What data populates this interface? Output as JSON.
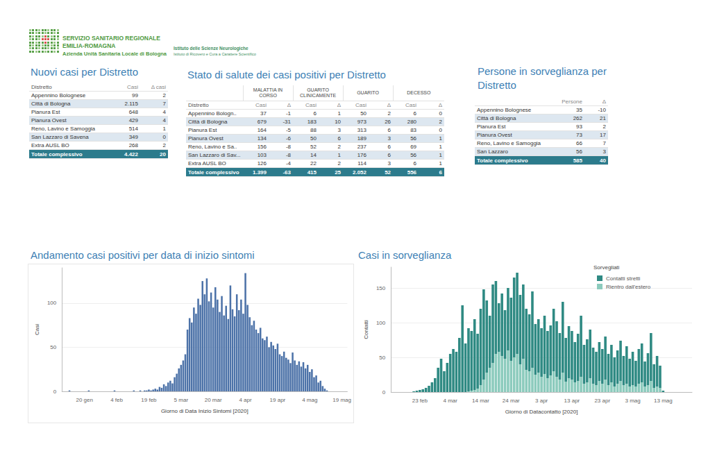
{
  "header": {
    "organization": [
      "SERVIZIO SANITARIO REGIONALE",
      "EMILIA-ROMAGNA",
      "Azienda Unità Sanitaria Locale di Bologna"
    ],
    "institute": [
      "Istituto delle Scienze Neurologiche",
      "Istituto di Ricovero e Cura a Carattere Scientifico"
    ]
  },
  "tables": [
    {
      "title": "Nuovi casi per Distretto",
      "columns": [
        "Distretto",
        "Casi",
        "Δ casi"
      ],
      "rows": [
        [
          "Appennino Bolognese",
          "99",
          "2"
        ],
        [
          "Città di Bologna",
          "2.115",
          "7"
        ],
        [
          "Pianura Est",
          "648",
          "4"
        ],
        [
          "Pianura Ovest",
          "429",
          "4"
        ],
        [
          "Reno, Lavino e Samoggia",
          "514",
          "1"
        ],
        [
          "San Lazzaro di Savena",
          "349",
          "0"
        ],
        [
          "Extra AUSL BO",
          "268",
          "2"
        ]
      ],
      "total": [
        "Totale complessivo",
        "4.422",
        "20"
      ]
    },
    {
      "title": "Stato di salute dei casi positivi per Distretto",
      "groups": [
        "MALATTIA IN CORSO",
        "GUARITO CLINICAMENTE",
        "GUARITO",
        "DECESSO"
      ],
      "columns": [
        "Distretto",
        "Casi",
        "Δ",
        "Casi",
        "Δ",
        "Casi",
        "Δ",
        "Casi",
        "Δ"
      ],
      "rows": [
        [
          "Appennino Bologn..",
          "37",
          "-1",
          "6",
          "1",
          "50",
          "2",
          "6",
          "0"
        ],
        [
          "Città di Bologna",
          "679",
          "-31",
          "183",
          "10",
          "973",
          "26",
          "280",
          "2"
        ],
        [
          "Pianura Est",
          "164",
          "-5",
          "88",
          "3",
          "313",
          "6",
          "83",
          "0"
        ],
        [
          "Pianura Ovest",
          "134",
          "-6",
          "50",
          "6",
          "189",
          "3",
          "56",
          "1"
        ],
        [
          "Reno, Lavino e Sa..",
          "156",
          "-8",
          "52",
          "2",
          "237",
          "6",
          "69",
          "1"
        ],
        [
          "San Lazzaro di Sav...",
          "103",
          "-8",
          "14",
          "1",
          "176",
          "6",
          "56",
          "1"
        ],
        [
          "Extra AUSL BO",
          "126",
          "-4",
          "22",
          "2",
          "114",
          "3",
          "6",
          "1"
        ]
      ],
      "total": [
        "Totale complessivo",
        "1.399",
        "-63",
        "415",
        "25",
        "2.052",
        "52",
        "556",
        "6"
      ]
    },
    {
      "title": "Persone in sorveglianza per Distretto",
      "columns": [
        "Persone",
        "Δ"
      ],
      "rows": [
        [
          "Appennino Bolognese",
          "35",
          "-10"
        ],
        [
          "Città di Bologna",
          "262",
          "21"
        ],
        [
          "Pianura Est",
          "93",
          "2"
        ],
        [
          "Pianura Ovest",
          "73",
          "17"
        ],
        [
          "Reno, Lavino e Samoggia",
          "66",
          "7"
        ],
        [
          "San Lazzaro",
          "56",
          "3"
        ]
      ],
      "total": [
        "Totale complessivo",
        "585",
        "40"
      ]
    }
  ],
  "chart_data": [
    {
      "type": "bar",
      "title": "Andamento casi positivi per data di inizio sintomi",
      "x_label": "Giorno di Data Inizio Sintomi [2020]",
      "y_label": "Casi",
      "categories": [
        null,
        null,
        null,
        null,
        null,
        null,
        null,
        null,
        null,
        null,
        "20 gen",
        null,
        null,
        null,
        null,
        null,
        null,
        null,
        null,
        null,
        null,
        null,
        null,
        null,
        null,
        "4 feb",
        null,
        null,
        null,
        null,
        null,
        null,
        null,
        null,
        null,
        null,
        null,
        null,
        null,
        null,
        "19 feb",
        null,
        null,
        null,
        null,
        null,
        null,
        null,
        null,
        null,
        null,
        null,
        null,
        null,
        null,
        "5 mar",
        null,
        null,
        null,
        null,
        null,
        null,
        null,
        null,
        null,
        null,
        null,
        null,
        null,
        null,
        "20 mar",
        null,
        null,
        null,
        null,
        null,
        null,
        null,
        null,
        null,
        null,
        null,
        null,
        null,
        null,
        "4 apr",
        null,
        null,
        null,
        null,
        null,
        null,
        null,
        null,
        null,
        null,
        null,
        null,
        null,
        null,
        "19 apr",
        null,
        null,
        null,
        null,
        null,
        null,
        null,
        null,
        null,
        null,
        null,
        null,
        null,
        null,
        "4 mag",
        null,
        null,
        null,
        null,
        null,
        null,
        null,
        null,
        null,
        null,
        null,
        null,
        null,
        null,
        "19 mag",
        null,
        null
      ],
      "values": [
        0,
        0,
        0,
        1,
        0,
        0,
        0,
        0,
        0,
        0,
        0,
        0,
        1,
        0,
        0,
        0,
        0,
        0,
        0,
        0,
        0,
        0,
        0,
        0,
        1,
        0,
        0,
        0,
        0,
        0,
        0,
        0,
        0,
        1,
        0,
        0,
        1,
        0,
        1,
        1,
        2,
        1,
        2,
        3,
        2,
        5,
        4,
        8,
        6,
        10,
        12,
        9,
        16,
        20,
        26,
        30,
        35,
        42,
        70,
        83,
        78,
        95,
        88,
        105,
        98,
        125,
        110,
        128,
        102,
        112,
        95,
        118,
        104,
        90,
        108,
        86,
        97,
        82,
        120,
        93,
        85,
        110,
        92,
        104,
        88,
        134,
        98,
        84,
        75,
        80,
        70,
        66,
        72,
        60,
        58,
        62,
        50,
        56,
        52,
        48,
        54,
        42,
        40,
        45,
        38,
        36,
        32,
        44,
        35,
        30,
        34,
        28,
        33,
        26,
        30,
        22,
        25,
        16,
        18,
        10,
        12,
        6,
        3,
        1,
        0,
        0,
        0,
        0,
        0,
        0,
        0,
        0,
        0
      ],
      "color": "#4c72a8",
      "ylim": [
        0,
        140
      ],
      "yticks": [
        0,
        50,
        100
      ],
      "grid": true
    },
    {
      "type": "bar",
      "title": "Casi in sorveglianza",
      "x_label": "Giorno di Datacontatto [2020]",
      "y_label": "Contatti",
      "legend_title": "Sorvegliati",
      "categories": [
        null,
        null,
        null,
        null,
        null,
        null,
        null,
        null,
        null,
        "23 feb",
        null,
        null,
        null,
        null,
        null,
        null,
        null,
        null,
        null,
        "4 mar",
        null,
        null,
        null,
        null,
        null,
        null,
        null,
        null,
        null,
        "14 mar",
        null,
        null,
        null,
        null,
        null,
        null,
        null,
        null,
        null,
        "24 mar",
        null,
        null,
        null,
        null,
        null,
        null,
        null,
        null,
        null,
        "3 apr",
        null,
        null,
        null,
        null,
        null,
        null,
        null,
        null,
        null,
        "13 apr",
        null,
        null,
        null,
        null,
        null,
        null,
        null,
        null,
        null,
        "23 apr",
        null,
        null,
        null,
        null,
        null,
        null,
        null,
        null,
        null,
        "3 mag",
        null,
        null,
        null,
        null,
        null,
        null,
        null,
        null,
        null,
        "13 mag",
        null,
        null,
        null,
        null,
        null,
        null,
        null,
        null,
        null
      ],
      "series": [
        {
          "name": "Contatti stretti",
          "color": "#2f8a83",
          "values": [
            0,
            0,
            0,
            0,
            0,
            0,
            0,
            1,
            2,
            3,
            4,
            6,
            9,
            14,
            20,
            35,
            48,
            30,
            42,
            55,
            62,
            58,
            78,
            125,
            70,
            91,
            86,
            102,
            79,
            110,
            130,
            104,
            75,
            113,
            105,
            70,
            90,
            70,
            90,
            91,
            115,
            117,
            100,
            107,
            88,
            82,
            110,
            73,
            77,
            70,
            84,
            68,
            72,
            90,
            80,
            67,
            102,
            63,
            75,
            70,
            58,
            68,
            88,
            56,
            62,
            70,
            52,
            48,
            56,
            50,
            62,
            45,
            54,
            42,
            48,
            58,
            42,
            54,
            40,
            48,
            37,
            50,
            56,
            36,
            46,
            69,
            34,
            44,
            32,
            2,
            0,
            0,
            0,
            0,
            0,
            0,
            0,
            0,
            0
          ]
        },
        {
          "name": "Rientro dall'estero",
          "color": "#8ccbbd",
          "values": [
            0,
            0,
            0,
            0,
            0,
            0,
            0,
            0,
            0,
            0,
            0,
            0,
            0,
            0,
            0,
            0,
            0,
            0,
            0,
            0,
            0,
            0,
            0,
            0,
            0,
            1,
            2,
            3,
            5,
            10,
            18,
            28,
            35,
            42,
            55,
            58,
            52,
            48,
            60,
            45,
            50,
            55,
            40,
            48,
            32,
            30,
            35,
            25,
            28,
            22,
            26,
            20,
            24,
            30,
            22,
            18,
            28,
            15,
            20,
            18,
            14,
            16,
            22,
            12,
            14,
            20,
            12,
            10,
            16,
            12,
            18,
            10,
            14,
            8,
            12,
            16,
            10,
            12,
            8,
            10,
            8,
            12,
            14,
            8,
            10,
            16,
            6,
            8,
            6,
            0,
            0,
            0,
            0,
            0,
            0,
            0,
            0,
            0,
            0
          ]
        }
      ],
      "stacked": true,
      "legend": "top-right",
      "ylim": [
        0,
        180
      ],
      "yticks": [
        0,
        50,
        100,
        150
      ],
      "grid": true
    }
  ]
}
